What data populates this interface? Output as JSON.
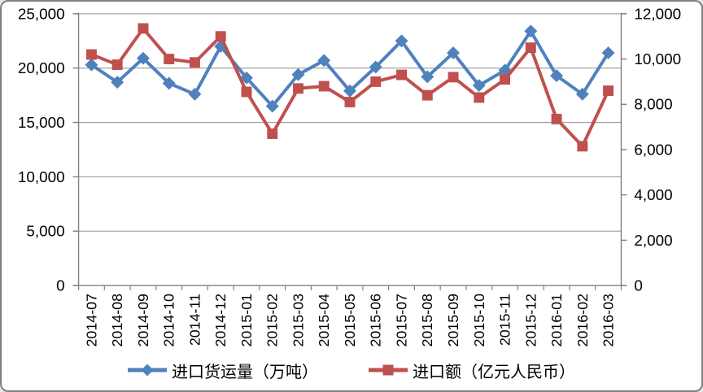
{
  "chart_data": {
    "type": "line",
    "title": "",
    "categories": [
      "2014-07",
      "2014-08",
      "2014-09",
      "2014-10",
      "2014-11",
      "2014-12",
      "2015-01",
      "2015-02",
      "2015-03",
      "2015-04",
      "2015-05",
      "2015-06",
      "2015-07",
      "2015-08",
      "2015-09",
      "2015-10",
      "2015-11",
      "2015-12",
      "2016-01",
      "2016-02",
      "2016-03"
    ],
    "series": [
      {
        "name": "进口货运量（万吨）",
        "axis": "left",
        "color": "#4F81BD",
        "marker": "diamond",
        "values": [
          20300,
          18700,
          20900,
          18600,
          17600,
          22000,
          19100,
          16500,
          19400,
          20700,
          17900,
          20100,
          22500,
          19200,
          21400,
          18400,
          19800,
          23400,
          19300,
          17600,
          21400
        ]
      },
      {
        "name": "进口额（亿元人民币）",
        "axis": "right",
        "color": "#C0504D",
        "marker": "square",
        "values": [
          10200,
          9750,
          11350,
          10000,
          9850,
          11000,
          8550,
          6700,
          8700,
          8800,
          8100,
          9000,
          9300,
          8400,
          9200,
          8300,
          9100,
          10500,
          7350,
          6150,
          8600
        ]
      }
    ],
    "left_axis": {
      "min": 0,
      "max": 25000,
      "step": 5000,
      "ticks": [
        "0",
        "5,000",
        "10,000",
        "15,000",
        "20,000",
        "25,000"
      ]
    },
    "right_axis": {
      "min": 0,
      "max": 12000,
      "step": 2000,
      "ticks": [
        "0",
        "2,000",
        "4,000",
        "6,000",
        "8,000",
        "10,000",
        "12,000"
      ]
    },
    "grid": true,
    "legend_position": "bottom",
    "colors": {
      "grid": "#A6A6A6",
      "axis": "#808080",
      "text": "#000000",
      "frame_border": "#7F7F7F",
      "background": "#FFFFFF"
    }
  }
}
